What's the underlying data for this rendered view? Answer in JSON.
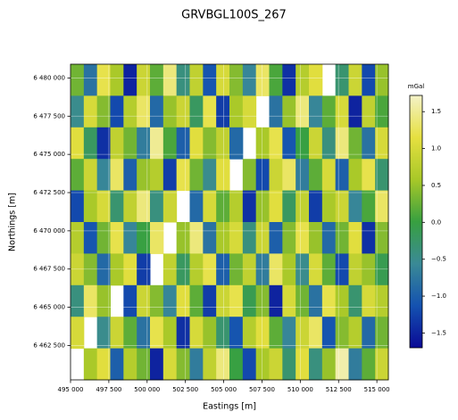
{
  "chart_data": {
    "type": "heatmap",
    "title": "GRVBGL100S_267",
    "xlabel": "Eastings [m]",
    "ylabel": "Northings [m]",
    "colorbar_label": "mGal",
    "xlim": [
      495000,
      515750
    ],
    "ylim": [
      6460250,
      6480900
    ],
    "xticks": [
      {
        "value": 495000,
        "label": "495 000"
      },
      {
        "value": 497500,
        "label": "497 500"
      },
      {
        "value": 500000,
        "label": "500 000"
      },
      {
        "value": 502500,
        "label": "502 500"
      },
      {
        "value": 505000,
        "label": "505 000"
      },
      {
        "value": 507500,
        "label": "507 500"
      },
      {
        "value": 510000,
        "label": "510 000"
      },
      {
        "value": 512500,
        "label": "512 500"
      },
      {
        "value": 515000,
        "label": "515 000"
      }
    ],
    "yticks": [
      {
        "value": 6462500,
        "label": "6 462 500"
      },
      {
        "value": 6465000,
        "label": "6 465 000"
      },
      {
        "value": 6467500,
        "label": "6 467 500"
      },
      {
        "value": 6470000,
        "label": "6 470 000"
      },
      {
        "value": 6472500,
        "label": "6 472 500"
      },
      {
        "value": 6475000,
        "label": "6 475 000"
      },
      {
        "value": 6477500,
        "label": "6 477 500"
      },
      {
        "value": 6480000,
        "label": "6 480 000"
      }
    ],
    "clim": [
      -1.7,
      1.72
    ],
    "cticks": [
      {
        "value": -1.5,
        "label": "−1.5"
      },
      {
        "value": -1.0,
        "label": "−1.0"
      },
      {
        "value": -0.5,
        "label": "−0.5"
      },
      {
        "value": 0,
        "label": "0.0"
      },
      0.5,
      {
        "value": 1.0,
        "label": "1.0"
      },
      1.5
    ],
    "colormap": [
      "#0a0a96",
      "#1452b0",
      "#3a8a96",
      "#38a040",
      "#a8c828",
      "#e6e040",
      "#f4f2c8"
    ],
    "grid": true,
    "values": [
      [
        0.3,
        -0.8,
        1.2,
        0.6,
        -1.5,
        0.9,
        0.2,
        1.4,
        -0.4,
        0.8,
        -1.1,
        1.0,
        0.4,
        -0.6,
        1.3,
        0.1,
        -1.4,
        0.7,
        1.1,
        null,
        -0.3,
        0.9,
        -1.2,
        0.5
      ],
      [
        -0.5,
        1.0,
        0.4,
        -1.2,
        0.7,
        1.3,
        -0.9,
        0.5,
        0.9,
        -0.2,
        1.2,
        -1.3,
        0.6,
        1.0,
        null,
        -0.8,
        0.5,
        1.4,
        -0.6,
        0.2,
        1.0,
        -1.5,
        0.8,
        0.1
      ],
      [
        1.1,
        -0.2,
        -1.4,
        0.8,
        0.3,
        -0.7,
        1.5,
        0.1,
        -1.0,
        1.1,
        0.4,
        0.8,
        -0.9,
        null,
        0.6,
        1.2,
        -1.1,
        0.0,
        0.9,
        -0.4,
        1.4,
        0.3,
        -0.8,
        1.0
      ],
      [
        0.2,
        0.9,
        -0.6,
        1.3,
        -1.0,
        0.5,
        0.7,
        -1.3,
        1.2,
        0.3,
        -0.5,
        1.1,
        null,
        0.4,
        -1.2,
        0.9,
        1.3,
        -0.7,
        0.2,
        1.0,
        -1.0,
        0.6,
        1.2,
        -0.3
      ],
      [
        -1.2,
        0.6,
        1.0,
        -0.3,
        0.8,
        1.4,
        -0.4,
        0.9,
        null,
        -0.9,
        1.0,
        0.2,
        0.7,
        -1.4,
        0.5,
        1.1,
        -0.2,
        0.8,
        -1.3,
        0.6,
        0.9,
        -0.6,
        0.1,
        1.3
      ],
      [
        0.7,
        -1.1,
        0.3,
        1.2,
        -0.6,
        0.0,
        1.3,
        null,
        0.5,
        1.4,
        -0.8,
        0.6,
        1.0,
        -0.4,
        0.9,
        -1.0,
        0.4,
        1.2,
        0.5,
        -0.9,
        0.3,
        1.1,
        -1.4,
        0.4
      ],
      [
        0.9,
        0.4,
        -0.9,
        0.6,
        1.1,
        -1.3,
        null,
        0.8,
        -0.2,
        0.7,
        1.2,
        -1.0,
        0.3,
        0.8,
        -0.7,
        1.3,
        0.6,
        -0.5,
        1.0,
        0.2,
        -1.2,
        0.8,
        0.5,
        -0.1
      ],
      [
        -0.4,
        1.3,
        0.5,
        null,
        -1.2,
        0.9,
        0.4,
        -0.6,
        1.1,
        0.2,
        -1.3,
        0.9,
        1.2,
        -0.1,
        0.4,
        -1.5,
        1.0,
        0.3,
        -0.8,
        1.2,
        0.6,
        -0.3,
        1.0,
        0.7
      ],
      [
        1.0,
        null,
        -0.5,
        0.9,
        0.2,
        -0.8,
        1.2,
        0.6,
        -1.4,
        1.0,
        0.5,
        -0.3,
        -1.1,
        0.7,
        1.1,
        0.2,
        -0.6,
        0.9,
        1.3,
        -1.1,
        0.4,
        0.7,
        -0.9,
        0.3
      ],
      [
        null,
        0.6,
        1.1,
        -1.0,
        0.7,
        0.3,
        -1.5,
        1.0,
        0.4,
        -0.7,
        0.8,
        1.4,
        0.0,
        -1.2,
        0.6,
        0.9,
        -0.3,
        1.1,
        -0.4,
        0.5,
        1.6,
        -0.7,
        0.2,
        0.9
      ]
    ]
  }
}
